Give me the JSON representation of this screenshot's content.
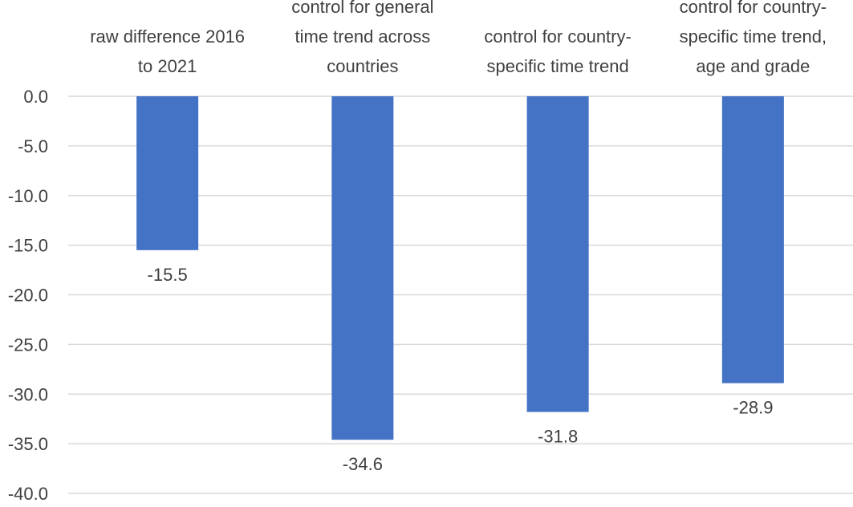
{
  "chart_data": {
    "type": "bar",
    "categories": [
      [
        "raw difference 2016",
        "to 2021"
      ],
      [
        "control for general",
        "time trend across",
        "countries"
      ],
      [
        "control for country-",
        "specific time trend"
      ],
      [
        "control for country-",
        "specific time trend,",
        "age and grade"
      ]
    ],
    "values": [
      -15.5,
      -34.6,
      -31.8,
      -28.9
    ],
    "data_labels": [
      "-15.5",
      "-34.6",
      "-31.8",
      "-28.9"
    ],
    "ylim": [
      -40,
      0
    ],
    "yticks": [
      0,
      -5,
      -10,
      -15,
      -20,
      -25,
      -30,
      -35,
      -40
    ],
    "ytick_labels": [
      "0.0",
      "-5.0",
      "-10.0",
      "-15.0",
      "-20.0",
      "-25.0",
      "-30.0",
      "-35.0",
      "-40.0"
    ],
    "bar_color": "#4472c4",
    "grid": true,
    "legend": "none",
    "category_axis_position": "top"
  }
}
